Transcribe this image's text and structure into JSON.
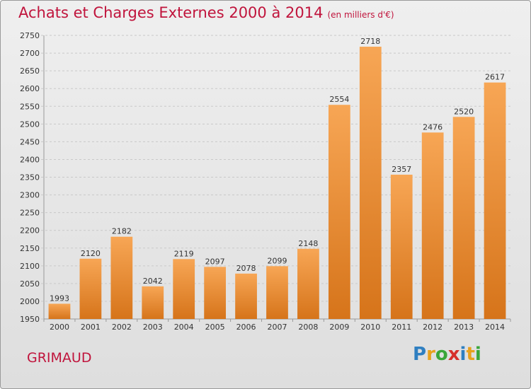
{
  "header": {
    "title": "Achats et Charges Externes 2000 à 2014",
    "subtitle": "(en milliers d'€)"
  },
  "footer": {
    "town": "GRIMAUD",
    "logo_text": "Proxiti"
  },
  "colors": {
    "title": "#c0143c",
    "bar_top": "#f7a655",
    "bar_bottom": "#d6741a",
    "grid": "#c9c9c9"
  },
  "chart_data": {
    "type": "bar",
    "title": "Achats et Charges Externes 2000 à 2014",
    "subtitle": "(en milliers d'€)",
    "categories": [
      "2000",
      "2001",
      "2002",
      "2003",
      "2004",
      "2005",
      "2006",
      "2007",
      "2008",
      "2009",
      "2010",
      "2011",
      "2012",
      "2013",
      "2014"
    ],
    "values": [
      1993,
      2120,
      2182,
      2042,
      2119,
      2097,
      2078,
      2099,
      2148,
      2554,
      2718,
      2357,
      2476,
      2520,
      2617
    ],
    "ylim": [
      1950,
      2750
    ],
    "yticks": [
      1950,
      2000,
      2050,
      2100,
      2150,
      2200,
      2250,
      2300,
      2350,
      2400,
      2450,
      2500,
      2550,
      2600,
      2650,
      2700,
      2750
    ],
    "grid": true,
    "data_labels": true
  }
}
